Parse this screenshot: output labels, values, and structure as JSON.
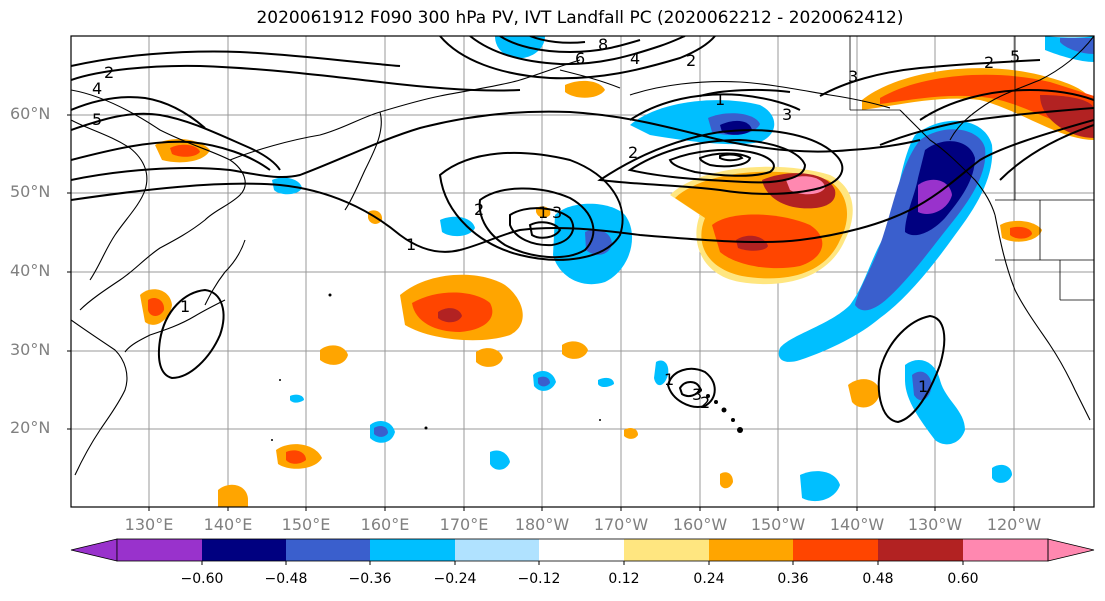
{
  "title": "2020061912 F090 300 hPa PV, IVT Landfall PC (2020062212 - 2020062412)",
  "lat_labels": [
    "60°N",
    "50°N",
    "40°N",
    "30°N",
    "20°N"
  ],
  "lon_labels": [
    "130°E",
    "140°E",
    "150°E",
    "160°E",
    "170°E",
    "180°W",
    "170°W",
    "160°W",
    "150°W",
    "140°W",
    "130°W",
    "120°W"
  ],
  "colorbar": {
    "colors": [
      "#9932cc",
      "#000080",
      "#3a5fcd",
      "#00bfff",
      "#b0e2ff",
      "#ffffff",
      "#ffe680",
      "#ffa500",
      "#ff4500",
      "#b22222",
      "#ff88b0"
    ],
    "tick_labels": [
      "−0.60",
      "−0.48",
      "−0.36",
      "−0.24",
      "−0.12",
      "0.12",
      "0.24",
      "0.36",
      "0.48",
      "0.60"
    ]
  },
  "contour_labels": [
    "2",
    "4",
    "5",
    "6",
    "8",
    "4",
    "2",
    "1",
    "2",
    "3",
    "1",
    "3",
    "2",
    "3",
    "2",
    "1",
    "1",
    "1",
    "5",
    "3",
    "1",
    "2"
  ]
}
